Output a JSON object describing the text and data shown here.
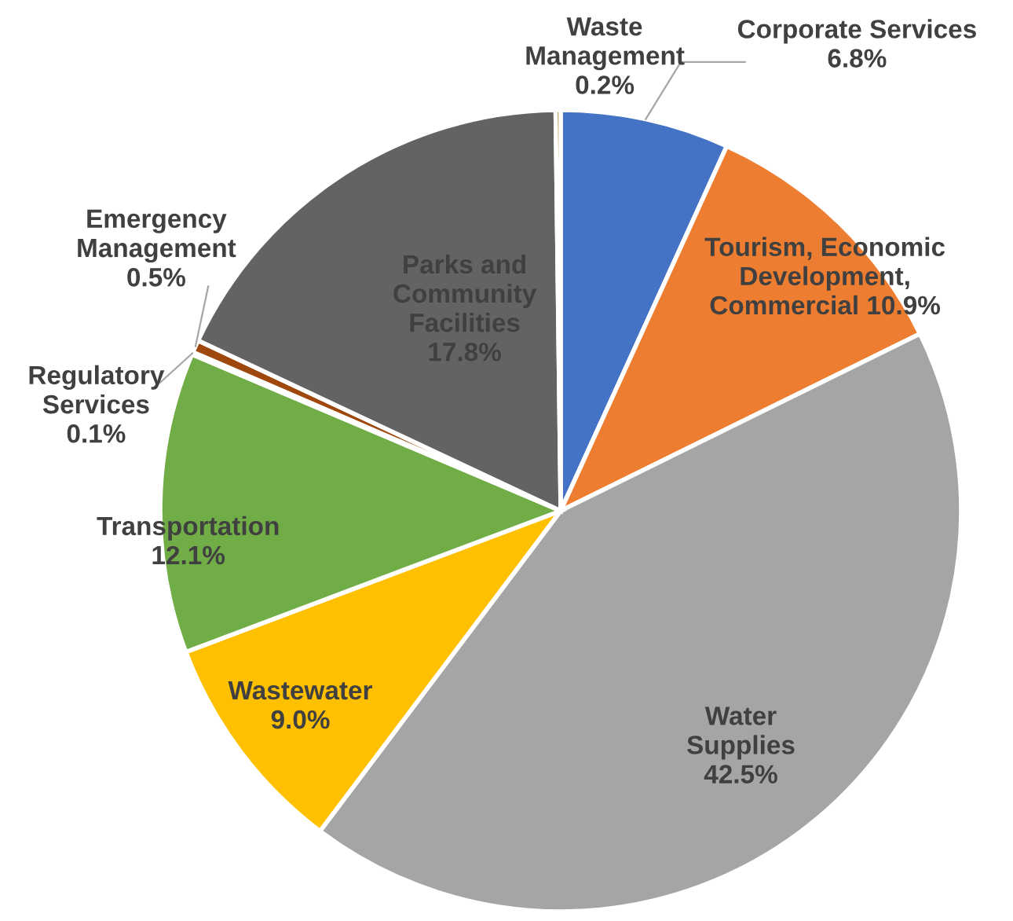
{
  "chart_data": {
    "type": "pie",
    "categories": [
      "Corporate Services",
      "Tourism, Economic Development, Commercial",
      "Water Supplies",
      "Wastewater",
      "Transportation",
      "Regulatory Services",
      "Emergency Management",
      "Parks and Community Facilities",
      "Waste Management"
    ],
    "values": [
      6.8,
      10.9,
      42.5,
      9.0,
      12.1,
      0.1,
      0.5,
      17.8,
      0.2
    ],
    "value_labels": [
      "6.8%",
      "10.9%",
      "42.5%",
      "9.0%",
      "12.1%",
      "0.1%",
      "0.5%",
      "17.8%",
      "0.2%"
    ],
    "colors": [
      "#4472c4",
      "#ed7d31",
      "#a5a5a5",
      "#ffc000",
      "#70ad47",
      "#264478",
      "#9e480e",
      "#636363",
      "#997300"
    ]
  }
}
